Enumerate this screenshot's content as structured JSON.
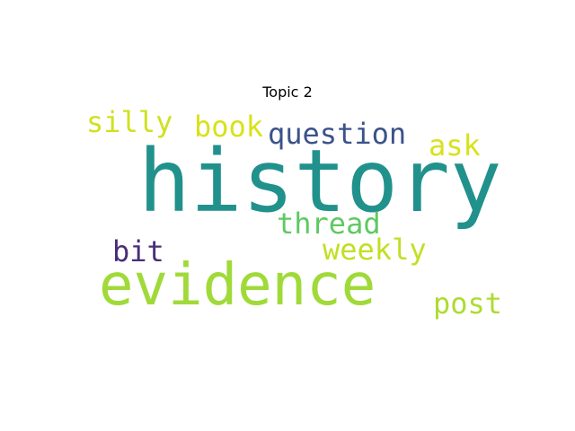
{
  "title": "Topic 2",
  "words": [
    {
      "id": "history",
      "text": "history",
      "color": "#21918c"
    },
    {
      "id": "evidence",
      "text": "evidence",
      "color": "#a0da39"
    },
    {
      "id": "question",
      "text": "question",
      "color": "#3b528b"
    },
    {
      "id": "book",
      "text": "book",
      "color": "#d8e219"
    },
    {
      "id": "silly",
      "text": "silly",
      "color": "#d0e11c"
    },
    {
      "id": "ask",
      "text": "ask",
      "color": "#d8e219"
    },
    {
      "id": "thread",
      "text": "thread",
      "color": "#5ec962"
    },
    {
      "id": "weekly",
      "text": "weekly",
      "color": "#c2df23"
    },
    {
      "id": "bit",
      "text": "bit",
      "color": "#472d7b"
    },
    {
      "id": "post",
      "text": "post",
      "color": "#addc30"
    }
  ]
}
